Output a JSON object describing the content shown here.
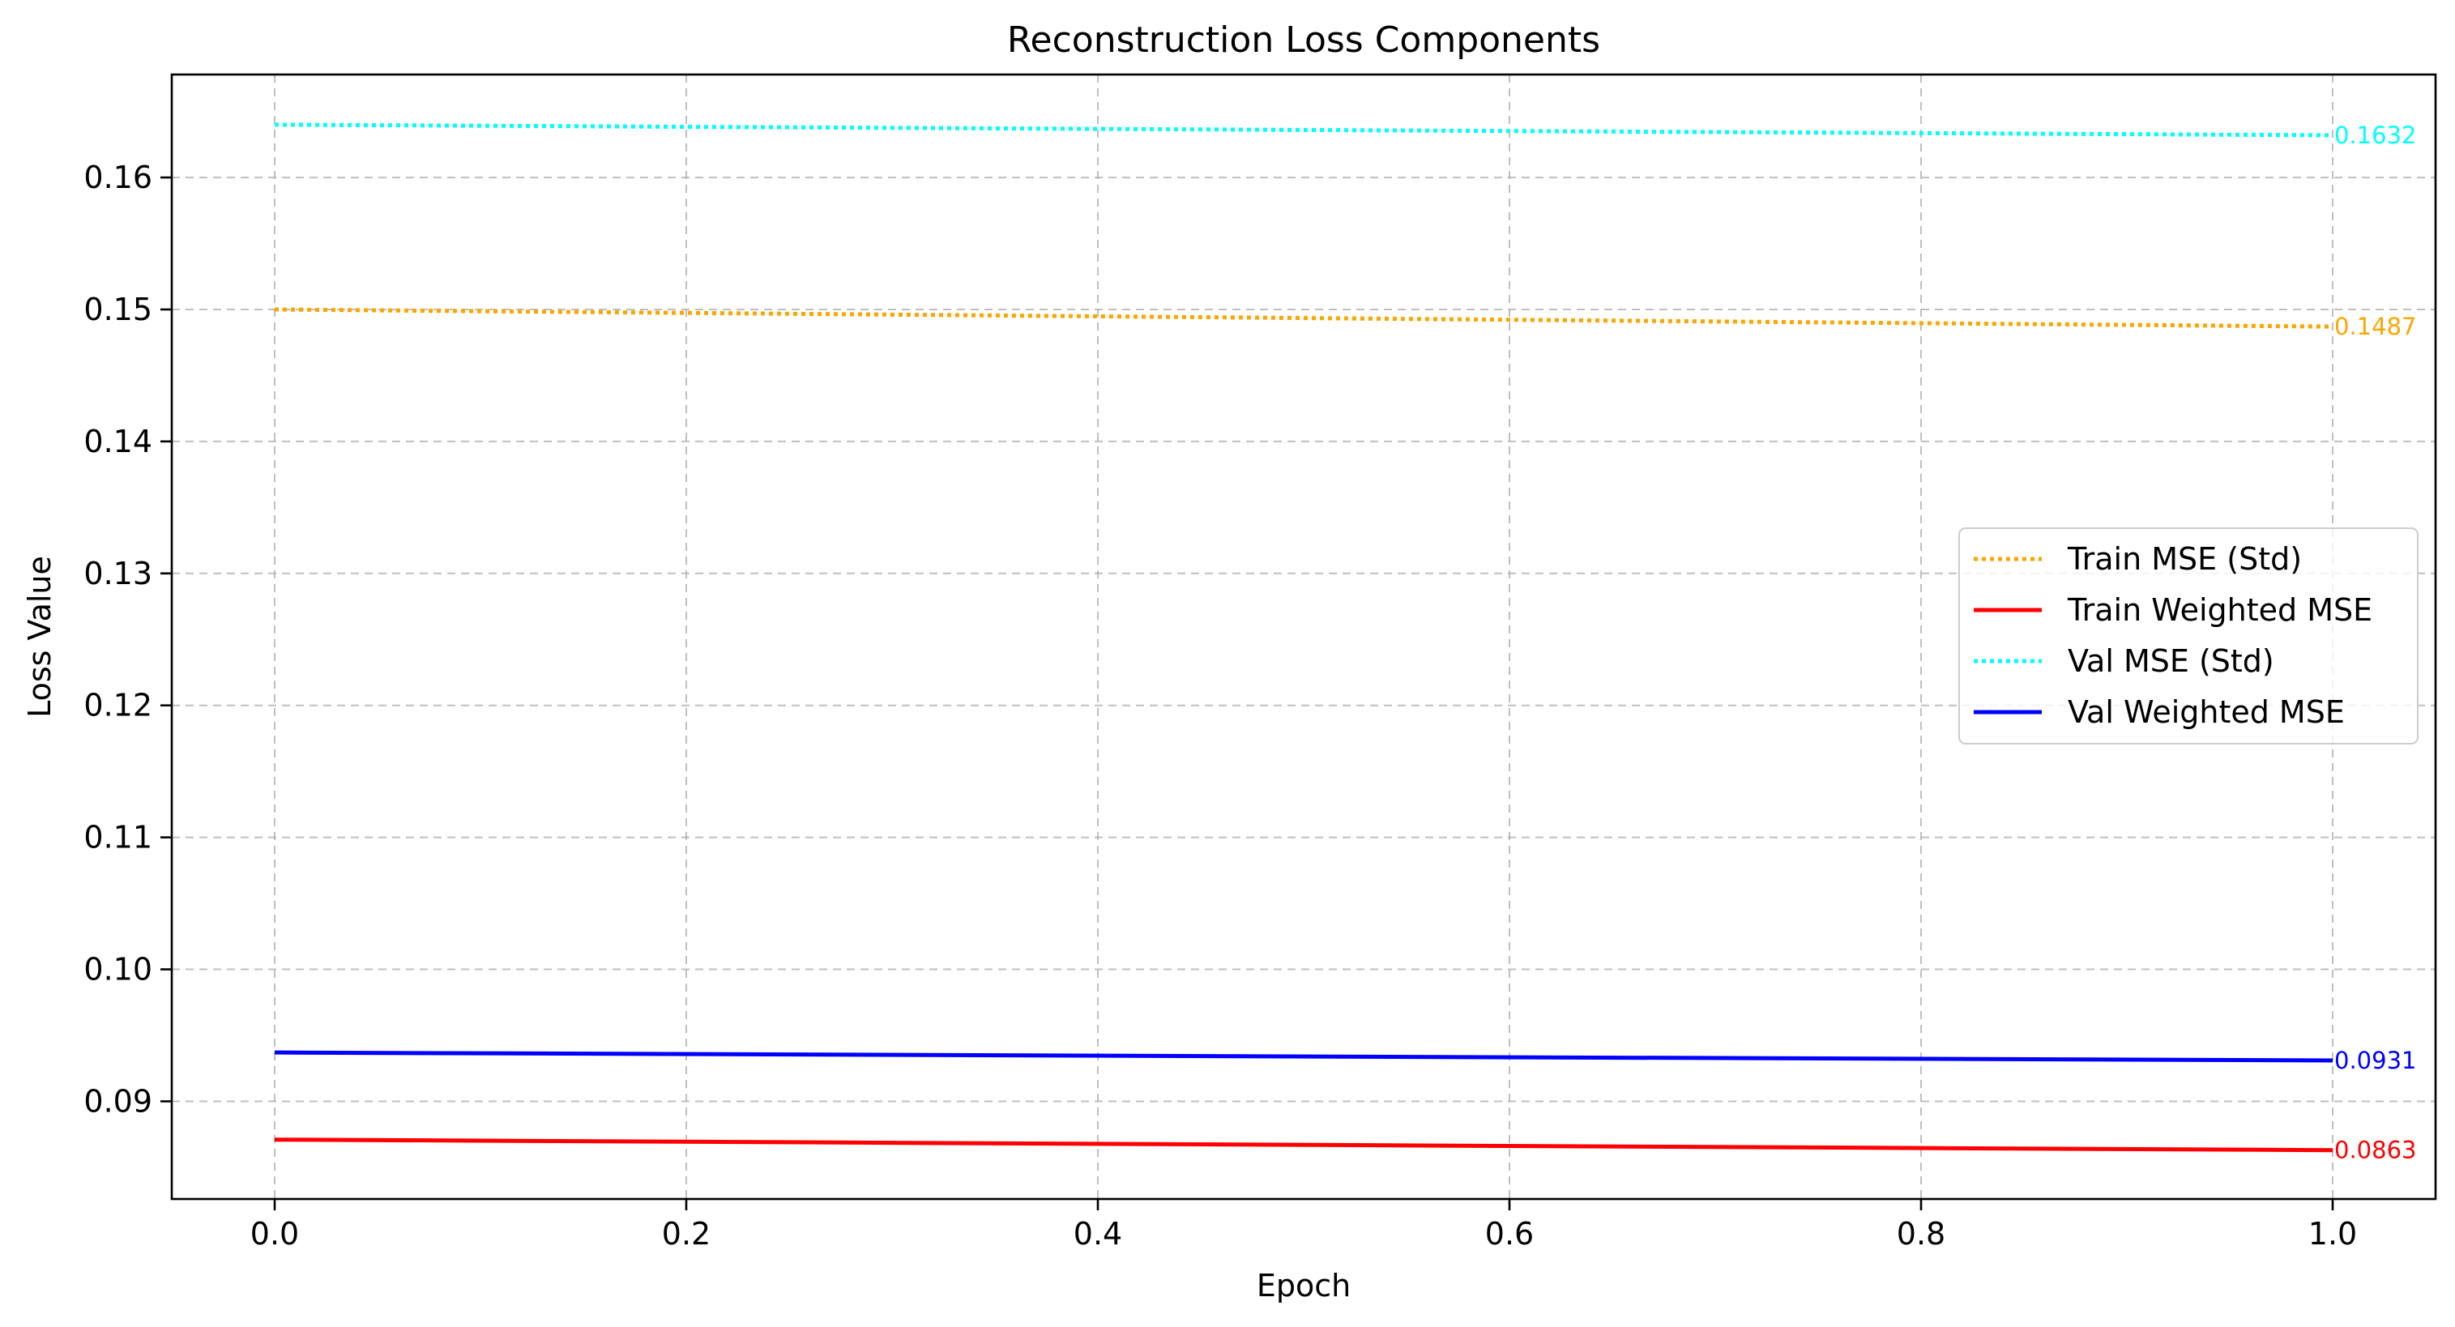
{
  "chart_data": {
    "type": "line",
    "title": "Reconstruction Loss Components",
    "xlabel": "Epoch",
    "ylabel": "Loss Value",
    "xlim": [
      -0.05,
      1.05
    ],
    "ylim": [
      0.0826,
      0.1678
    ],
    "x_ticks": [
      "0.0",
      "0.2",
      "0.4",
      "0.6",
      "0.8",
      "1.0"
    ],
    "y_ticks": [
      "0.09",
      "0.10",
      "0.11",
      "0.12",
      "0.13",
      "0.14",
      "0.15",
      "0.16"
    ],
    "grid": true,
    "legend_position": "center-right",
    "series": [
      {
        "name": "Train MSE (Std)",
        "color": "#ffa500",
        "style": "dotted",
        "x": [
          0,
          1
        ],
        "y": [
          0.15,
          0.1487
        ],
        "end_label": "0.1487"
      },
      {
        "name": "Train Weighted MSE",
        "color": "#ff0000",
        "style": "solid",
        "x": [
          0,
          1
        ],
        "y": [
          0.0871,
          0.0863
        ],
        "end_label": "0.0863"
      },
      {
        "name": "Val MSE (Std)",
        "color": "#00ffff",
        "style": "dotted",
        "x": [
          0,
          1
        ],
        "y": [
          0.164,
          0.1632
        ],
        "end_label": "0.1632"
      },
      {
        "name": "Val Weighted MSE",
        "color": "#0000ff",
        "style": "solid",
        "x": [
          0,
          1
        ],
        "y": [
          0.0937,
          0.0931
        ],
        "end_label": "0.0931"
      }
    ]
  }
}
